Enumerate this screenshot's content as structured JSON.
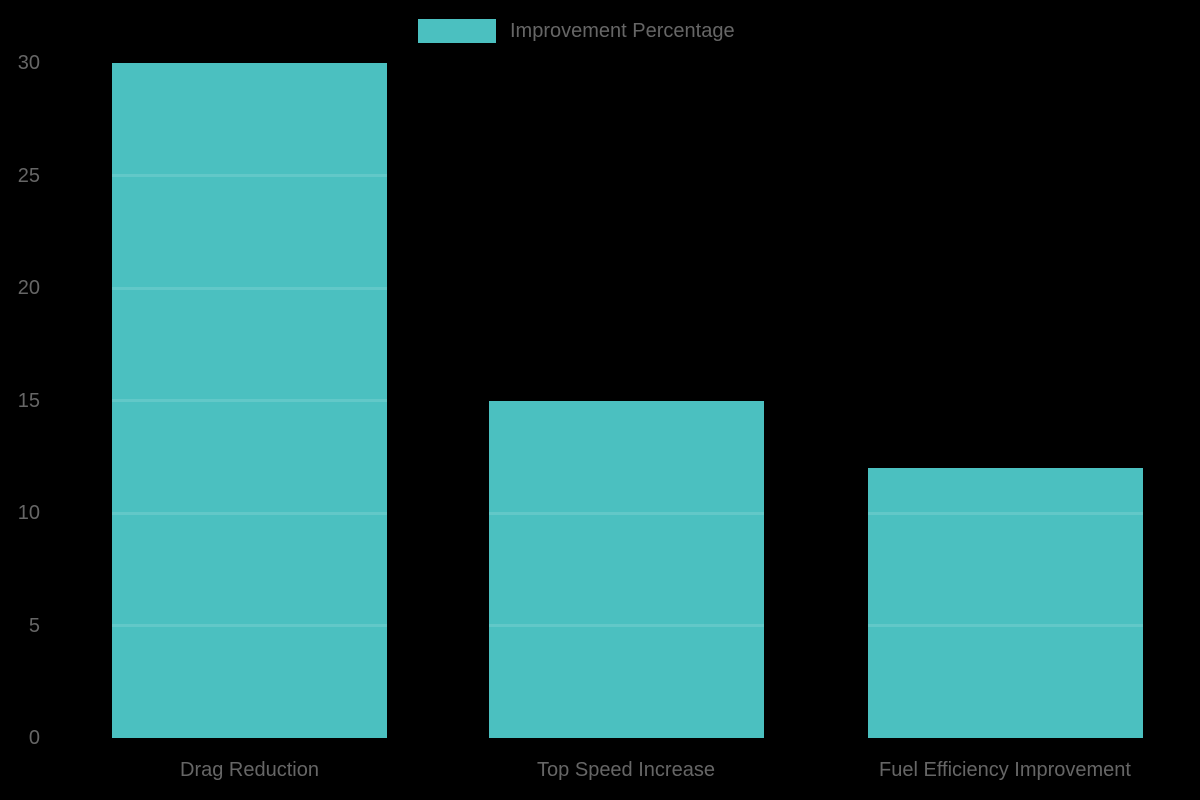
{
  "legend": {
    "label": "Improvement Percentage"
  },
  "chart_data": {
    "type": "bar",
    "title": "",
    "categories": [
      "Drag Reduction",
      "Top Speed Increase",
      "Fuel Efficiency Improvement"
    ],
    "series": [
      {
        "name": "Improvement Percentage",
        "values": [
          30,
          15,
          12
        ]
      }
    ],
    "xlabel": "",
    "ylabel": "",
    "ylim": [
      0,
      30
    ],
    "yticks": [
      0,
      5,
      10,
      15,
      20,
      25,
      30
    ],
    "grid": "horizontal gridlines every 5 units, visible only as lighter stripes across bars",
    "legend_position": "top-center",
    "colors": {
      "bar": "#4BC0C0",
      "text": "#666666",
      "background": "#000000",
      "grid_stripe": "rgba(255,255,255,0.13)"
    }
  }
}
